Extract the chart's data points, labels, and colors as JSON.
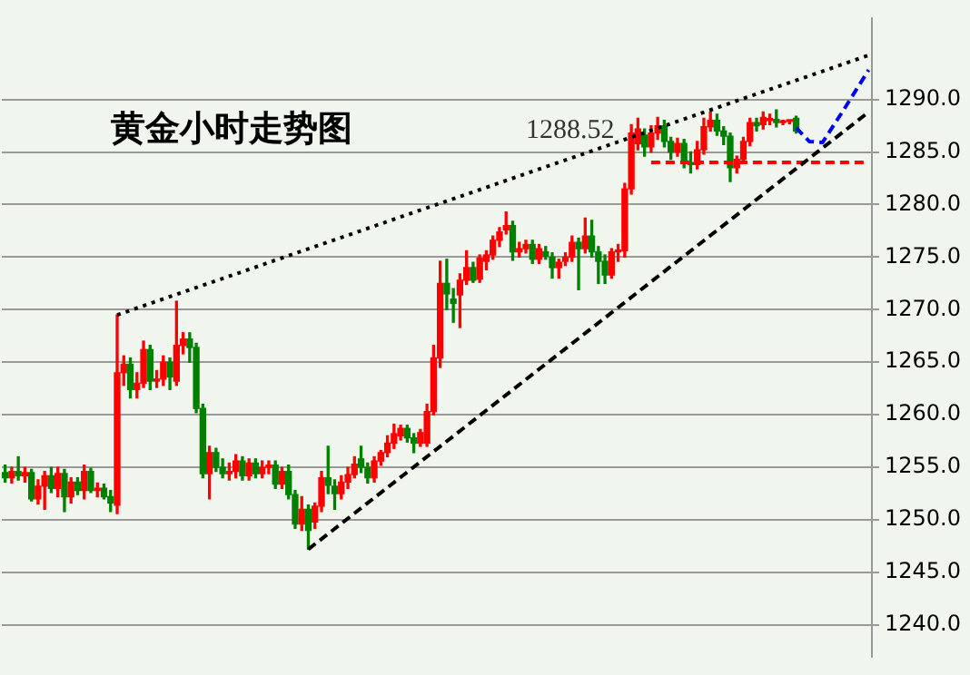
{
  "chart_data": {
    "type": "candlestick",
    "title": "黄金小时走势图",
    "categories": [
      null,
      null,
      null,
      null,
      null,
      null,
      null,
      null,
      null,
      null,
      null,
      null,
      null,
      null,
      null,
      null,
      null,
      null,
      null,
      null,
      null,
      null,
      null,
      null,
      null,
      null,
      null,
      null,
      null,
      null,
      null,
      null,
      null,
      null,
      null,
      null,
      null,
      null,
      null,
      null,
      null,
      null,
      null,
      null,
      null,
      null,
      null,
      null,
      null,
      null,
      null,
      null,
      null,
      null,
      null,
      null,
      null,
      null,
      null,
      null,
      null,
      null,
      null,
      null,
      null,
      null,
      null,
      null,
      null,
      null,
      null,
      null,
      null,
      null,
      null,
      null,
      null,
      null,
      null,
      null,
      null,
      null,
      null,
      null,
      null,
      null,
      null,
      null,
      null,
      null,
      null,
      null,
      null,
      null,
      null,
      null,
      null,
      null,
      null,
      null,
      null,
      null,
      null,
      null,
      null,
      null,
      null,
      null,
      null,
      null,
      null,
      null,
      null,
      null,
      null,
      null,
      null,
      null,
      null,
      null,
      null,
      null,
      null,
      null,
      null,
      null,
      null,
      null,
      null,
      null,
      null,
      null
    ],
    "ohlc": [
      [
        1254.5,
        1255.2,
        1253.6,
        1254.0
      ],
      [
        1254.0,
        1255.0,
        1253.5,
        1254.6
      ],
      [
        1254.6,
        1256.0,
        1253.8,
        1254.2
      ],
      [
        1254.2,
        1255.0,
        1253.6,
        1254.5
      ],
      [
        1254.5,
        1254.8,
        1251.8,
        1252.0
      ],
      [
        1252.0,
        1253.8,
        1251.5,
        1253.2
      ],
      [
        1253.2,
        1254.6,
        1251.0,
        1254.2
      ],
      [
        1254.2,
        1255.0,
        1252.6,
        1253.0
      ],
      [
        1253.0,
        1255.0,
        1252.2,
        1254.4
      ],
      [
        1254.4,
        1254.8,
        1250.8,
        1252.2
      ],
      [
        1252.2,
        1254.0,
        1251.6,
        1253.6
      ],
      [
        1253.6,
        1254.0,
        1252.4,
        1252.8
      ],
      [
        1252.8,
        1255.2,
        1252.0,
        1254.6
      ],
      [
        1254.6,
        1254.9,
        1252.6,
        1252.8
      ],
      [
        1252.8,
        1253.5,
        1252.2,
        1253.0
      ],
      [
        1253.0,
        1253.4,
        1252.0,
        1252.2
      ],
      [
        1252.2,
        1252.8,
        1250.8,
        1251.6
      ],
      [
        1251.4,
        1269.5,
        1250.6,
        1264.0
      ],
      [
        1264.0,
        1265.6,
        1262.8,
        1264.8
      ],
      [
        1264.8,
        1265.4,
        1261.6,
        1262.4
      ],
      [
        1262.4,
        1264.0,
        1261.6,
        1263.0
      ],
      [
        1263.0,
        1267.0,
        1262.6,
        1266.2
      ],
      [
        1266.2,
        1266.6,
        1262.4,
        1263.2
      ],
      [
        1263.2,
        1264.2,
        1262.6,
        1263.4
      ],
      [
        1263.4,
        1265.6,
        1262.8,
        1265.0
      ],
      [
        1265.0,
        1265.4,
        1262.4,
        1263.6
      ],
      [
        1263.2,
        1270.8,
        1262.8,
        1266.6
      ],
      [
        1266.6,
        1267.8,
        1265.8,
        1267.2
      ],
      [
        1267.2,
        1267.8,
        1265.0,
        1266.4
      ],
      [
        1266.4,
        1266.8,
        1260.2,
        1260.6
      ],
      [
        1260.6,
        1261.0,
        1254.0,
        1254.4
      ],
      [
        1254.4,
        1257.0,
        1252.0,
        1256.4
      ],
      [
        1256.4,
        1256.8,
        1254.6,
        1255.0
      ],
      [
        1255.0,
        1255.8,
        1254.0,
        1254.4
      ],
      [
        1254.4,
        1255.4,
        1253.8,
        1254.6
      ],
      [
        1254.6,
        1256.2,
        1254.0,
        1255.6
      ],
      [
        1255.6,
        1256.0,
        1253.8,
        1254.2
      ],
      [
        1254.2,
        1255.8,
        1253.8,
        1255.4
      ],
      [
        1255.4,
        1255.8,
        1254.0,
        1254.4
      ],
      [
        1254.4,
        1255.6,
        1254.0,
        1255.0
      ],
      [
        1255.0,
        1255.6,
        1254.4,
        1255.2
      ],
      [
        1255.2,
        1255.6,
        1253.0,
        1253.4
      ],
      [
        1253.4,
        1255.0,
        1253.0,
        1254.6
      ],
      [
        1254.6,
        1255.2,
        1252.0,
        1252.4
      ],
      [
        1252.4,
        1252.8,
        1249.2,
        1249.6
      ],
      [
        1249.6,
        1252.2,
        1249.0,
        1251.0
      ],
      [
        1251.0,
        1251.4,
        1247.2,
        1249.0
      ],
      [
        1249.8,
        1251.6,
        1249.2,
        1251.3
      ],
      [
        1251.3,
        1254.6,
        1250.8,
        1254.0
      ],
      [
        1254.0,
        1257.0,
        1252.5,
        1253.3
      ],
      [
        1253.2,
        1253.8,
        1251.0,
        1252.5
      ],
      [
        1252.5,
        1254.2,
        1252.0,
        1253.6
      ],
      [
        1253.6,
        1255.0,
        1253.0,
        1254.3
      ],
      [
        1254.3,
        1256.0,
        1254.0,
        1255.3
      ],
      [
        1255.8,
        1257.0,
        1254.5,
        1255.0
      ],
      [
        1255.0,
        1255.4,
        1253.5,
        1254.0
      ],
      [
        1254.0,
        1256.0,
        1253.6,
        1255.6
      ],
      [
        1255.6,
        1256.6,
        1255.2,
        1256.4
      ],
      [
        1256.4,
        1258.0,
        1256.0,
        1257.3
      ],
      [
        1257.3,
        1259.1,
        1256.8,
        1258.2
      ],
      [
        1258.0,
        1259.0,
        1257.6,
        1258.7
      ],
      [
        1258.7,
        1259.0,
        1257.4,
        1257.8
      ],
      [
        1257.8,
        1258.2,
        1256.4,
        1257.3
      ],
      [
        1257.3,
        1258.6,
        1257.0,
        1258.3
      ],
      [
        1257.3,
        1261.0,
        1257.0,
        1260.3
      ],
      [
        1260.3,
        1266.6,
        1260.0,
        1265.4
      ],
      [
        1265.4,
        1274.6,
        1264.5,
        1272.5
      ],
      [
        1272.5,
        1274.8,
        1270.0,
        1271.5
      ],
      [
        1271.0,
        1272.0,
        1268.8,
        1270.6
      ],
      [
        1271.4,
        1273.4,
        1268.3,
        1272.8
      ],
      [
        1272.8,
        1275.6,
        1272.4,
        1274.0
      ],
      [
        1274.0,
        1274.5,
        1272.6,
        1272.8
      ],
      [
        1272.9,
        1275.2,
        1272.6,
        1274.9
      ],
      [
        1274.6,
        1275.6,
        1273.8,
        1275.2
      ],
      [
        1275.2,
        1277.0,
        1274.8,
        1276.6
      ],
      [
        1276.6,
        1277.8,
        1276.0,
        1277.4
      ],
      [
        1277.6,
        1279.3,
        1277.2,
        1278.0
      ],
      [
        1278.0,
        1278.4,
        1274.7,
        1275.5
      ],
      [
        1275.5,
        1276.4,
        1275.0,
        1275.8
      ],
      [
        1275.8,
        1276.6,
        1275.4,
        1276.2
      ],
      [
        1276.2,
        1276.6,
        1274.4,
        1274.8
      ],
      [
        1274.8,
        1276.2,
        1274.4,
        1275.8
      ],
      [
        1275.5,
        1276.0,
        1274.8,
        1275.1
      ],
      [
        1275.0,
        1275.4,
        1273.0,
        1274.0
      ],
      [
        1274.0,
        1274.8,
        1273.0,
        1274.5
      ],
      [
        1274.6,
        1275.4,
        1274.2,
        1275.0
      ],
      [
        1275.0,
        1277.0,
        1274.6,
        1276.4
      ],
      [
        1276.4,
        1276.8,
        1271.9,
        1275.8
      ],
      [
        1275.8,
        1278.7,
        1275.4,
        1277.0
      ],
      [
        1277.0,
        1278.5,
        1275.0,
        1275.5
      ],
      [
        1275.5,
        1276.0,
        1272.5,
        1274.6
      ],
      [
        1274.6,
        1275.2,
        1272.5,
        1273.3
      ],
      [
        1273.3,
        1275.8,
        1273.0,
        1275.5
      ],
      [
        1275.5,
        1276.2,
        1274.6,
        1275.6
      ],
      [
        1275.6,
        1282.0,
        1275.0,
        1281.5
      ],
      [
        1281.5,
        1287.6,
        1281.0,
        1286.8
      ],
      [
        1285.8,
        1288.2,
        1285.2,
        1287.2
      ],
      [
        1286.6,
        1287.2,
        1284.6,
        1285.5
      ],
      [
        1285.5,
        1287.5,
        1285.0,
        1286.8
      ],
      [
        1286.8,
        1288.3,
        1286.2,
        1287.5
      ],
      [
        1287.5,
        1288.0,
        1285.5,
        1286.0
      ],
      [
        1286.0,
        1286.4,
        1284.3,
        1285.0
      ],
      [
        1285.0,
        1286.3,
        1284.6,
        1285.8
      ],
      [
        1285.8,
        1286.2,
        1283.5,
        1284.0
      ],
      [
        1284.0,
        1285.0,
        1283.0,
        1283.8
      ],
      [
        1283.8,
        1286.0,
        1283.4,
        1285.2
      ],
      [
        1285.2,
        1288.2,
        1284.8,
        1287.4
      ],
      [
        1287.4,
        1288.8,
        1287.0,
        1288.0
      ],
      [
        1288.0,
        1288.6,
        1286.6,
        1287.0
      ],
      [
        1287.0,
        1287.4,
        1285.7,
        1286.5
      ],
      [
        1286.5,
        1286.8,
        1282.2,
        1283.5
      ],
      [
        1283.5,
        1284.6,
        1283.0,
        1284.3
      ],
      [
        1284.3,
        1286.4,
        1284.0,
        1286.0
      ],
      [
        1286.0,
        1288.2,
        1285.6,
        1287.8
      ],
      [
        1287.8,
        1288.2,
        1287.0,
        1287.5
      ],
      [
        1287.6,
        1288.8,
        1287.2,
        1288.3
      ],
      [
        1288.0,
        1288.6,
        1287.6,
        1288.1
      ],
      [
        1288.1,
        1289.0,
        1287.4,
        1287.8
      ],
      [
        1287.8,
        1288.0,
        1287.6,
        1287.9
      ],
      [
        1287.9,
        1288.0,
        1287.7,
        1287.9
      ],
      [
        1288.2,
        1288.4,
        1286.8,
        1287.0
      ],
      null,
      null,
      null,
      null,
      null,
      null,
      null,
      null,
      null,
      null,
      null
    ],
    "colors": [
      "#008000",
      "#ff0000",
      "#008000",
      "#ff0000",
      "#008000",
      "#ff0000",
      "#ff0000",
      "#008000",
      "#ff0000",
      "#008000",
      "#ff0000",
      "#008000",
      "#ff0000",
      "#008000",
      "#ff0000",
      "#008000",
      "#008000",
      "#ff0000",
      "#ff0000",
      "#008000",
      "#ff0000",
      "#ff0000",
      "#008000",
      "#ff0000",
      "#ff0000",
      "#008000",
      "#ff0000",
      "#ff0000",
      "#008000",
      "#008000",
      "#008000",
      "#ff0000",
      "#008000",
      "#008000",
      "#ff0000",
      "#ff0000",
      "#008000",
      "#ff0000",
      "#008000",
      "#ff0000",
      "#ff0000",
      "#008000",
      "#ff0000",
      "#008000",
      "#008000",
      "#ff0000",
      "#008000",
      "#ff0000",
      "#ff0000",
      "#008000",
      "#008000",
      "#ff0000",
      "#ff0000",
      "#ff0000",
      "#008000",
      "#008000",
      "#ff0000",
      "#ff0000",
      "#ff0000",
      "#ff0000",
      "#ff0000",
      "#008000",
      "#008000",
      "#ff0000",
      "#ff0000",
      "#ff0000",
      "#ff0000",
      "#008000",
      "#008000",
      "#ff0000",
      "#ff0000",
      "#008000",
      "#ff0000",
      "#ff0000",
      "#ff0000",
      "#ff0000",
      "#ff0000",
      "#008000",
      "#ff0000",
      "#ff0000",
      "#008000",
      "#ff0000",
      "#008000",
      "#008000",
      "#ff0000",
      "#ff0000",
      "#ff0000",
      "#008000",
      "#ff0000",
      "#008000",
      "#008000",
      "#008000",
      "#ff0000",
      "#ff0000",
      "#ff0000",
      "#ff0000",
      "#ff0000",
      "#008000",
      "#ff0000",
      "#ff0000",
      "#008000",
      "#008000",
      "#ff0000",
      "#008000",
      "#008000",
      "#ff0000",
      "#ff0000",
      "#ff0000",
      "#008000",
      "#008000",
      "#008000",
      "#ff0000",
      "#ff0000",
      "#ff0000",
      "#008000",
      "#ff0000",
      "#ff0000",
      "#008000",
      "#ff0000",
      "#ff0000",
      "#008000",
      null,
      null,
      null,
      null,
      null,
      null,
      null,
      null,
      null,
      null,
      null
    ],
    "series": [
      {
        "type": "line",
        "color": "#000000",
        "line_style": "dotted",
        "values": [
          null,
          null,
          null,
          null,
          null,
          null,
          null,
          null,
          null,
          null,
          null,
          null,
          null,
          null,
          null,
          null,
          null,
          1269.5,
          null,
          null,
          null,
          null,
          null,
          null,
          null,
          null,
          null,
          null,
          null,
          null,
          null,
          null,
          null,
          null,
          null,
          null,
          null,
          null,
          null,
          null,
          null,
          null,
          null,
          null,
          null,
          null,
          null,
          null,
          null,
          null,
          null,
          null,
          null,
          null,
          null,
          null,
          null,
          null,
          null,
          null,
          null,
          null,
          null,
          null,
          null,
          null,
          null,
          null,
          null,
          null,
          null,
          null,
          null,
          null,
          null,
          null,
          null,
          null,
          null,
          null,
          null,
          null,
          null,
          null,
          null,
          null,
          null,
          null,
          null,
          null,
          null,
          null,
          null,
          null,
          null,
          null,
          null,
          null,
          null,
          null,
          null,
          null,
          null,
          null,
          null,
          null,
          null,
          null,
          null,
          null,
          null,
          null,
          null,
          null,
          null,
          null,
          null,
          null,
          null,
          null,
          null,
          null,
          null,
          null,
          null,
          null,
          null,
          null,
          null,
          null,
          null,
          1294.2
        ]
      },
      {
        "type": "line",
        "color": "#000000",
        "line_style": "dashed",
        "values": [
          null,
          null,
          null,
          null,
          null,
          null,
          null,
          null,
          null,
          null,
          null,
          null,
          null,
          null,
          null,
          null,
          null,
          null,
          null,
          null,
          null,
          null,
          null,
          null,
          null,
          null,
          null,
          null,
          null,
          null,
          null,
          null,
          null,
          null,
          null,
          null,
          null,
          null,
          null,
          null,
          null,
          null,
          null,
          null,
          null,
          null,
          1247.2,
          null,
          null,
          null,
          null,
          null,
          null,
          null,
          null,
          null,
          null,
          null,
          null,
          null,
          null,
          null,
          null,
          null,
          null,
          null,
          null,
          null,
          null,
          null,
          null,
          null,
          null,
          null,
          null,
          null,
          null,
          null,
          null,
          null,
          null,
          null,
          null,
          null,
          null,
          null,
          null,
          null,
          null,
          null,
          null,
          null,
          null,
          null,
          null,
          null,
          null,
          null,
          null,
          null,
          null,
          null,
          null,
          null,
          null,
          null,
          null,
          null,
          null,
          null,
          null,
          null,
          null,
          null,
          null,
          null,
          null,
          null,
          null,
          null,
          null,
          null,
          null,
          null,
          null,
          null,
          null,
          null,
          null,
          null,
          null,
          1288.8
        ]
      },
      {
        "type": "line",
        "color": "#ff0000",
        "line_style": "dashed",
        "values": [
          null,
          null,
          null,
          null,
          null,
          null,
          null,
          null,
          null,
          null,
          null,
          null,
          null,
          null,
          null,
          null,
          null,
          null,
          null,
          null,
          null,
          null,
          null,
          null,
          null,
          null,
          null,
          null,
          null,
          null,
          null,
          null,
          null,
          null,
          null,
          null,
          null,
          null,
          null,
          null,
          null,
          null,
          null,
          null,
          null,
          null,
          null,
          null,
          null,
          null,
          null,
          null,
          null,
          null,
          null,
          null,
          null,
          null,
          null,
          null,
          null,
          null,
          null,
          null,
          null,
          null,
          null,
          null,
          null,
          null,
          null,
          null,
          null,
          null,
          null,
          null,
          null,
          null,
          null,
          null,
          null,
          null,
          null,
          null,
          null,
          null,
          null,
          null,
          null,
          null,
          null,
          null,
          null,
          null,
          null,
          null,
          null,
          null,
          1284.0,
          null,
          null,
          null,
          null,
          null,
          null,
          null,
          null,
          null,
          null,
          null,
          null,
          null,
          null,
          null,
          null,
          null,
          null,
          null,
          null,
          null,
          null,
          null,
          null,
          null,
          null,
          null,
          null,
          null,
          null,
          null,
          null,
          1284.0
        ]
      },
      {
        "type": "line",
        "color": "#0000ff",
        "line_style": "dashed",
        "values": [
          null,
          null,
          null,
          null,
          null,
          null,
          null,
          null,
          null,
          null,
          null,
          null,
          null,
          null,
          null,
          null,
          null,
          null,
          null,
          null,
          null,
          null,
          null,
          null,
          null,
          null,
          null,
          null,
          null,
          null,
          null,
          null,
          null,
          null,
          null,
          null,
          null,
          null,
          null,
          null,
          null,
          null,
          null,
          null,
          null,
          null,
          null,
          null,
          null,
          null,
          null,
          null,
          null,
          null,
          null,
          null,
          null,
          null,
          null,
          null,
          null,
          null,
          null,
          null,
          null,
          null,
          null,
          null,
          null,
          null,
          null,
          null,
          null,
          null,
          null,
          null,
          null,
          null,
          null,
          null,
          null,
          null,
          null,
          null,
          null,
          null,
          null,
          null,
          null,
          null,
          null,
          null,
          null,
          null,
          null,
          null,
          null,
          null,
          null,
          null,
          null,
          null,
          null,
          null,
          null,
          null,
          null,
          null,
          null,
          null,
          null,
          null,
          null,
          null,
          null,
          null,
          null,
          null,
          null,
          null,
          1287.3,
          null,
          1286.0,
          null,
          1285.9,
          null,
          null,
          1288.8,
          null,
          null,
          null,
          1292.8
        ]
      }
    ],
    "ylim": [
      1237,
      1297.7
    ],
    "yticks": [
      {
        "value": 1240,
        "label": "1240.0"
      },
      {
        "value": 1245,
        "label": "1245.0"
      },
      {
        "value": 1250,
        "label": "1250.0"
      },
      {
        "value": 1255,
        "label": "1255.0"
      },
      {
        "value": 1260,
        "label": "1260.0"
      },
      {
        "value": 1265,
        "label": "1265.0"
      },
      {
        "value": 1270,
        "label": "1270.0"
      },
      {
        "value": 1275,
        "label": "1275.0"
      },
      {
        "value": 1280,
        "label": "1280.0"
      },
      {
        "value": 1285,
        "label": "1285.0"
      },
      {
        "value": 1290,
        "label": "1290.0"
      }
    ],
    "tick_labels": "y",
    "grid": "y",
    "annotations": [
      "1288.52"
    ]
  }
}
